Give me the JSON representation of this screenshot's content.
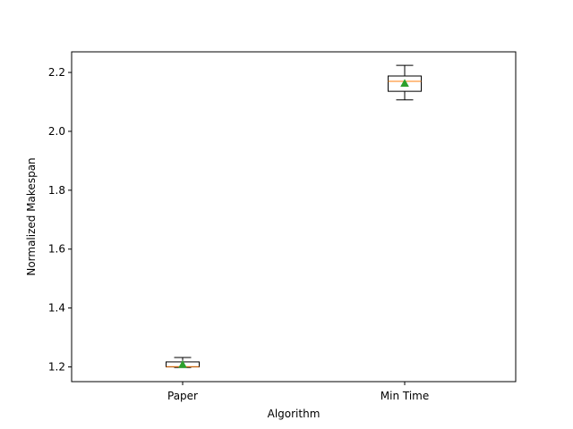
{
  "chart_data": {
    "type": "box",
    "title": "",
    "xlabel": "Algorithm",
    "ylabel": "Normalized Makespan",
    "ylim": [
      1.15,
      2.27
    ],
    "yticks": [
      1.2,
      1.4,
      1.6,
      1.8,
      2.0,
      2.2
    ],
    "ytick_labels": [
      "1.2",
      "1.4",
      "1.6",
      "1.8",
      "2.0",
      "2.2"
    ],
    "categories": [
      "Paper",
      "Min Time"
    ],
    "boxes": [
      {
        "category": "Paper",
        "whisker_low": 1.198,
        "q1": 1.2,
        "median": 1.201,
        "q3": 1.217,
        "whisker_high": 1.232,
        "mean": 1.208
      },
      {
        "category": "Min Time",
        "whisker_low": 2.107,
        "q1": 2.136,
        "median": 2.17,
        "q3": 2.188,
        "whisker_high": 2.224,
        "mean": 2.163
      }
    ],
    "grid": false,
    "colors": {
      "box": "#000000",
      "median": "#ff7f0e",
      "mean": "#2ca02c"
    }
  }
}
